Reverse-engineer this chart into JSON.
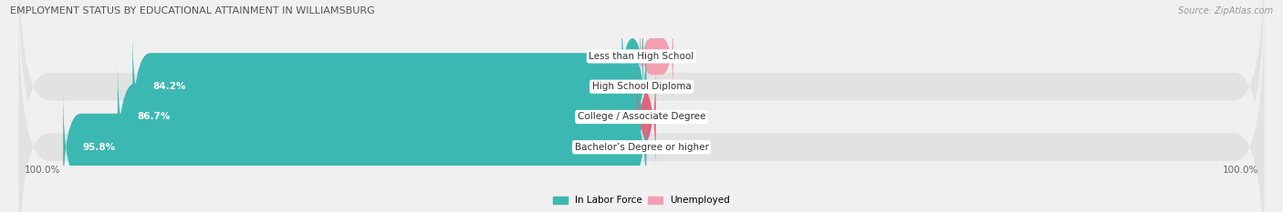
{
  "title": "EMPLOYMENT STATUS BY EDUCATIONAL ATTAINMENT IN WILLIAMSBURG",
  "source": "Source: ZipAtlas.com",
  "categories": [
    "Less than High School",
    "High School Diploma",
    "College / Associate Degree",
    "Bachelor’s Degree or higher"
  ],
  "labor_force": [
    0.0,
    84.2,
    86.7,
    95.8
  ],
  "unemployed": [
    0.0,
    0.0,
    1.6,
    0.0
  ],
  "labor_force_color": "#3cb8b2",
  "unemployed_color_light": "#f4a0b0",
  "unemployed_color_dark": "#e8607a",
  "row_bg_color_light": "#efefef",
  "row_bg_color_dark": "#e2e2e2",
  "max_val": 100.0,
  "figsize": [
    14.06,
    2.33
  ],
  "dpi": 100,
  "legend_labor_force": "In Labor Force",
  "legend_unemployed": "Unemployed",
  "left_axis_label": "100.0%",
  "right_axis_label": "100.0%"
}
